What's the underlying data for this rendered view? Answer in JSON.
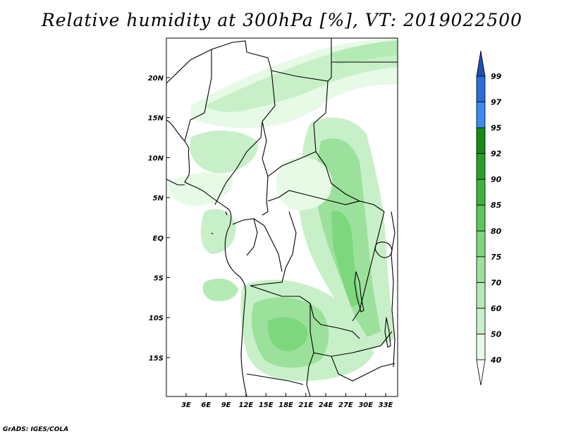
{
  "title": "Relative humidity at 300hPa [%], VT: 2019022500",
  "credit": "GrADS: IGES/COLA",
  "map": {
    "lat_labels": [
      "20N",
      "15N",
      "10N",
      "5N",
      "EQ",
      "5S",
      "10S",
      "15S"
    ],
    "lon_labels": [
      "3E",
      "6E",
      "9E",
      "12E",
      "15E",
      "18E",
      "21E",
      "24E",
      "27E",
      "30E",
      "33E"
    ]
  },
  "colorbar": {
    "levels": [
      "40",
      "50",
      "60",
      "70",
      "75",
      "80",
      "85",
      "90",
      "92",
      "95",
      "97",
      "99"
    ],
    "colors": [
      "#ffffff",
      "#e6fae6",
      "#c8f0c8",
      "#b4ebb4",
      "#9be19b",
      "#7dd77d",
      "#5ac85a",
      "#3cb43c",
      "#28a028",
      "#168c16",
      "#3c8cf0",
      "#2a6ed8",
      "#1e50b4"
    ]
  }
}
